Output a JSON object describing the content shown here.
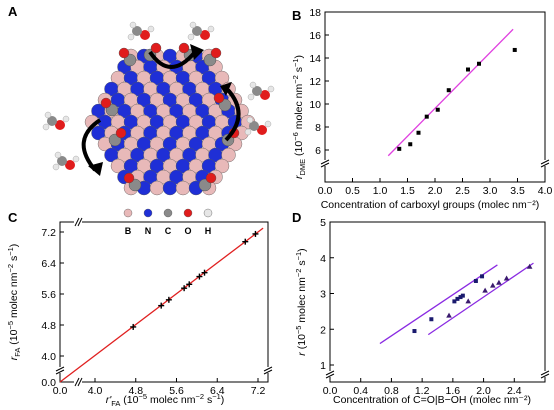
{
  "panels": {
    "A": {
      "letter": "A",
      "legend": [
        {
          "symbol": "B",
          "color": "#e8b9b9"
        },
        {
          "symbol": "N",
          "color": "#1f2fd6"
        },
        {
          "symbol": "C",
          "color": "#8a8a8a"
        },
        {
          "symbol": "O",
          "color": "#e01c1c"
        },
        {
          "symbol": "H",
          "color": "#e6e6e6"
        }
      ]
    },
    "B": {
      "letter": "B"
    },
    "C": {
      "letter": "C"
    },
    "D": {
      "letter": "D"
    }
  },
  "chart_data": [
    {
      "panel": "B",
      "type": "scatter",
      "xlabel": "Concentration of carboxyl groups (molec nm⁻²)",
      "ylabel": "r_DME (10⁻⁶ molec nm⁻² s⁻¹)",
      "ylabel_parts": {
        "r": "r",
        "sub": "DME",
        "rest": " (10",
        "exp1": "−6",
        "mid": " molec nm",
        "exp2": "−2",
        "mid2": " s",
        "exp3": "−1",
        "end": ")"
      },
      "xlim": [
        0.0,
        4.0
      ],
      "ylim": [
        6,
        18
      ],
      "axis_break_y": true,
      "x_ticks": [
        "0.0",
        "0.5",
        "1.0",
        "1.5",
        "2.0",
        "2.5",
        "3.0",
        "3.5",
        "4.0"
      ],
      "y_ticks": [
        "6",
        "8",
        "10",
        "12",
        "14",
        "16",
        "18"
      ],
      "series": [
        {
          "marker": "square",
          "color": "#000000",
          "x": [
            1.35,
            1.55,
            1.7,
            1.85,
            2.05,
            2.25,
            2.6,
            2.8,
            3.45
          ],
          "y": [
            6.1,
            6.5,
            7.5,
            8.9,
            9.5,
            11.2,
            13.0,
            13.5,
            14.7
          ]
        }
      ],
      "fit_lines": [
        {
          "color": "#e040e0",
          "x": [
            1.15,
            3.42
          ],
          "y": [
            5.5,
            16.5
          ]
        }
      ]
    },
    {
      "panel": "C",
      "type": "scatter",
      "xlabel": "r'FA (10⁻⁵ molec nm⁻² s⁻¹)",
      "ylabel": "rFA (10⁻⁵ molec nm⁻² s⁻¹)",
      "xlim": [
        4.0,
        7.2
      ],
      "ylim": [
        4.0,
        7.2
      ],
      "axis_break_x": true,
      "axis_break_y": true,
      "x_ticks": [
        "0.0",
        "4.0",
        "4.8",
        "5.6",
        "6.4",
        "7.2"
      ],
      "y_ticks": [
        "0.0",
        "4.0",
        "4.8",
        "5.6",
        "6.4",
        "7.2"
      ],
      "series": [
        {
          "marker": "plus",
          "color": "#000000",
          "x": [
            4.75,
            5.3,
            5.45,
            5.75,
            5.85,
            6.05,
            6.15,
            6.95,
            7.15
          ],
          "y": [
            4.75,
            5.3,
            5.45,
            5.75,
            5.85,
            6.05,
            6.15,
            6.95,
            7.15
          ]
        }
      ],
      "fit_lines": [
        {
          "color": "#e02020",
          "x": [
            0.0,
            7.3
          ],
          "y": [
            0.0,
            7.3
          ]
        }
      ]
    },
    {
      "panel": "D",
      "type": "scatter",
      "xlabel": "Concentration of C=O|B−OH (molec nm⁻²)",
      "ylabel": "r (10⁻⁵ molec nm⁻² s⁻¹)",
      "xlim": [
        0.0,
        2.8
      ],
      "ylim": [
        1,
        5
      ],
      "axis_break_y": true,
      "x_ticks": [
        "0.0",
        "0.4",
        "0.8",
        "1.2",
        "1.6",
        "2.0",
        "2.4"
      ],
      "y_ticks": [
        "1",
        "2",
        "3",
        "4",
        "5"
      ],
      "series": [
        {
          "marker": "square",
          "color": "#1a1a6e",
          "x": [
            1.1,
            1.32,
            1.62,
            1.66,
            1.7,
            1.73,
            1.9,
            1.98
          ],
          "y": [
            1.95,
            2.28,
            2.78,
            2.85,
            2.9,
            2.94,
            3.35,
            3.48
          ]
        },
        {
          "marker": "triangle",
          "color": "#3a1a6e",
          "x": [
            1.55,
            1.8,
            2.02,
            2.12,
            2.2,
            2.3,
            2.6
          ],
          "y": [
            2.38,
            2.78,
            3.08,
            3.22,
            3.3,
            3.42,
            3.75
          ]
        }
      ],
      "fit_lines": [
        {
          "color": "#8a2be2",
          "x": [
            0.65,
            2.18
          ],
          "y": [
            1.6,
            3.8
          ]
        },
        {
          "color": "#8a2be2",
          "x": [
            1.28,
            2.65
          ],
          "y": [
            1.85,
            3.85
          ]
        }
      ]
    }
  ]
}
